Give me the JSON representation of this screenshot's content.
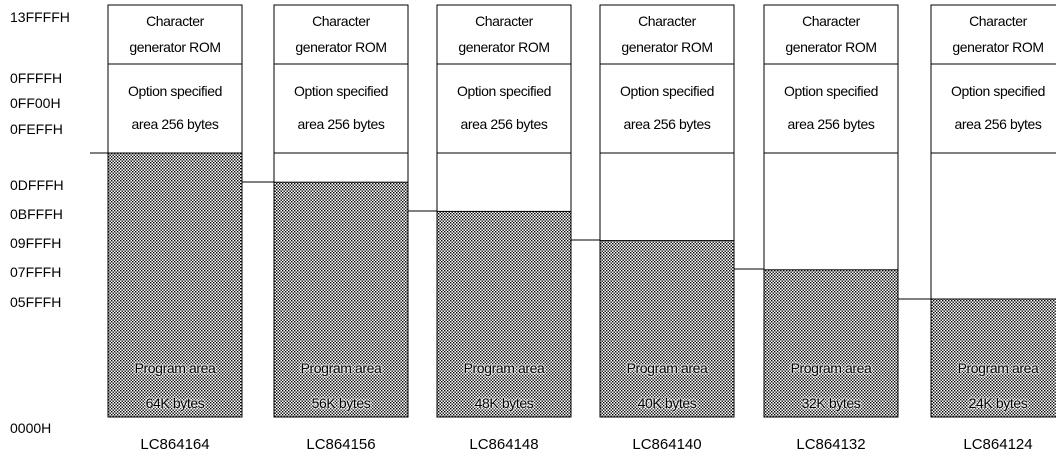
{
  "address_labels": [
    "13FFFFH",
    "0FFFFH",
    "0FF00H",
    "0FEFFH",
    "0DFFFH",
    "0BFFFH",
    "09FFFH",
    "07FFFH",
    "05FFFH",
    "0000H"
  ],
  "char_rom_label": [
    "Character",
    "generator ROM"
  ],
  "option_area_label": [
    "Option specified",
    "area 256 bytes"
  ],
  "columns": [
    {
      "model": "LC864164",
      "program_line1": "Program area",
      "program_line2": "64K bytes",
      "program_kbytes": 64
    },
    {
      "model": "LC864156",
      "program_line1": "Program area",
      "program_line2": "56K bytes",
      "program_kbytes": 56
    },
    {
      "model": "LC864148",
      "program_line1": "Program area",
      "program_line2": "48K bytes",
      "program_kbytes": 48
    },
    {
      "model": "LC864140",
      "program_line1": "Program area",
      "program_line2": "40K bytes",
      "program_kbytes": 40
    },
    {
      "model": "LC864132",
      "program_line1": "Program area",
      "program_line2": "32K bytes",
      "program_kbytes": 32
    },
    {
      "model": "LC864124",
      "program_line1": "Program area",
      "program_line2": "24K bytes",
      "program_kbytes": 24
    }
  ]
}
